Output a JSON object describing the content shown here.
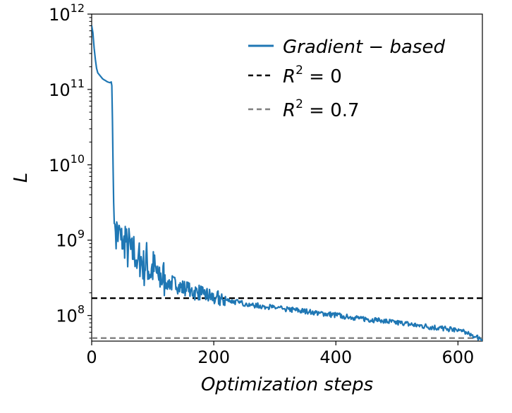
{
  "chart_data": {
    "type": "line",
    "title": "",
    "xlabel": "Optimization steps",
    "ylabel": "L",
    "xlim": [
      0,
      640
    ],
    "ylim_log10": [
      7.66,
      12.0
    ],
    "y_scale": "log",
    "x_ticks": [
      {
        "value": 0,
        "label": "0"
      },
      {
        "value": 200,
        "label": "200"
      },
      {
        "value": 400,
        "label": "400"
      },
      {
        "value": 600,
        "label": "600"
      }
    ],
    "y_ticks": [
      {
        "value": 8,
        "base": "10",
        "exp": "8"
      },
      {
        "value": 9,
        "base": "10",
        "exp": "9"
      },
      {
        "value": 10,
        "base": "10",
        "exp": "10"
      },
      {
        "value": 11,
        "base": "10",
        "exp": "11"
      },
      {
        "value": 12,
        "base": "10",
        "exp": "12"
      }
    ],
    "legend": {
      "position": "top-right",
      "entries": [
        {
          "name": "Gradient-based",
          "parts": [
            "Gradient",
            " − ",
            "based"
          ],
          "style": "solid",
          "color": "#1f77b4"
        },
        {
          "name": "R^2 = 0",
          "parts": [
            "R",
            "2",
            " = 0"
          ],
          "style": "dashed",
          "color": "#000000"
        },
        {
          "name": "R^2 = 0.7",
          "parts": [
            "R",
            "2",
            " = 0.7"
          ],
          "style": "dashed",
          "color": "#7f7f7f"
        }
      ]
    },
    "series": [
      {
        "name": "Gradient-based",
        "color": "#1f77b4",
        "points": [
          [
            0,
            11.85
          ],
          [
            2,
            11.75
          ],
          [
            4,
            11.55
          ],
          [
            6,
            11.4
          ],
          [
            8,
            11.28
          ],
          [
            10,
            11.22
          ],
          [
            14,
            11.18
          ],
          [
            18,
            11.14
          ],
          [
            22,
            11.12
          ],
          [
            26,
            11.1
          ],
          [
            30,
            11.09
          ],
          [
            32,
            11.1
          ],
          [
            33,
            11.05
          ],
          [
            34,
            10.6
          ],
          [
            35,
            10.0
          ],
          [
            36,
            9.5
          ],
          [
            37,
            9.25
          ],
          [
            38,
            8.95
          ],
          [
            39,
            9.2
          ],
          [
            40,
            9.02
          ],
          [
            42,
            9.15
          ],
          [
            44,
            8.95
          ],
          [
            46,
            9.1
          ],
          [
            48,
            8.9
          ],
          [
            50,
            9.0
          ],
          [
            52,
            8.85
          ],
          [
            55,
            9.05
          ],
          [
            58,
            8.8
          ],
          [
            62,
            8.92
          ],
          [
            65,
            8.75
          ],
          [
            70,
            8.85
          ],
          [
            75,
            8.68
          ],
          [
            80,
            8.75
          ],
          [
            85,
            8.6
          ],
          [
            90,
            8.7
          ],
          [
            95,
            8.55
          ],
          [
            100,
            8.6
          ],
          [
            110,
            8.5
          ],
          [
            120,
            8.45
          ],
          [
            130,
            8.42
          ],
          [
            140,
            8.38
          ],
          [
            150,
            8.35
          ],
          [
            160,
            8.32
          ],
          [
            170,
            8.3
          ],
          [
            180,
            8.28
          ],
          [
            190,
            8.25
          ],
          [
            200,
            8.22
          ],
          [
            220,
            8.2
          ],
          [
            240,
            8.17
          ],
          [
            260,
            8.14
          ],
          [
            280,
            8.12
          ],
          [
            300,
            8.1
          ],
          [
            320,
            8.08
          ],
          [
            340,
            8.06
          ],
          [
            360,
            8.04
          ],
          [
            380,
            8.02
          ],
          [
            400,
            8.0
          ],
          [
            420,
            7.98
          ],
          [
            440,
            7.96
          ],
          [
            460,
            7.94
          ],
          [
            480,
            7.92
          ],
          [
            500,
            7.9
          ],
          [
            520,
            7.88
          ],
          [
            540,
            7.86
          ],
          [
            560,
            7.84
          ],
          [
            580,
            7.82
          ],
          [
            600,
            7.8
          ],
          [
            610,
            7.78
          ],
          [
            620,
            7.74
          ],
          [
            630,
            7.71
          ],
          [
            640,
            7.69
          ]
        ]
      }
    ],
    "reference_lines": [
      {
        "name": "R^2 = 0",
        "y_log10": 8.23,
        "color": "#000000"
      },
      {
        "name": "R^2 = 0.7",
        "y_log10": 7.7,
        "color": "#7f7f7f"
      }
    ],
    "noise_profile": [
      {
        "from": 37,
        "to": 120,
        "amplitude": 0.28
      },
      {
        "from": 120,
        "to": 220,
        "amplitude": 0.12
      },
      {
        "from": 220,
        "to": 640,
        "amplitude": 0.04
      }
    ]
  }
}
